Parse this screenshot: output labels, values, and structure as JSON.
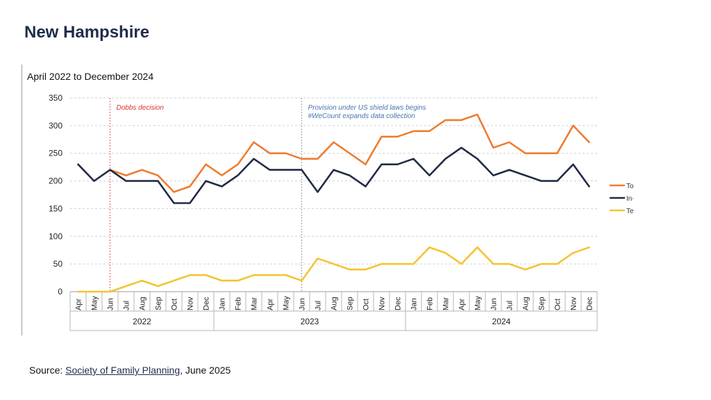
{
  "page": {
    "title": "New Hampshire",
    "source_prefix": "Source: ",
    "source_link": "Society of Family Planning",
    "source_suffix": ", June 2025"
  },
  "chart_data": {
    "type": "line",
    "title": "April 2022 to December 2024",
    "xlabel": "",
    "ylabel": "",
    "ylim": [
      0,
      350
    ],
    "yticks": [
      0,
      50,
      100,
      150,
      200,
      250,
      300,
      350
    ],
    "grid": true,
    "legend_position": "right",
    "categories": [
      "Apr",
      "May",
      "Jun",
      "Jul",
      "Aug",
      "Sep",
      "Oct",
      "Nov",
      "Dec",
      "Jan",
      "Feb",
      "Mar",
      "Apr",
      "May",
      "Jun",
      "Jul",
      "Aug",
      "Sep",
      "Oct",
      "Nov",
      "Dec",
      "Jan",
      "Feb",
      "Mar",
      "Apr",
      "May",
      "Jun",
      "Jul",
      "Aug",
      "Sep",
      "Oct",
      "Nov",
      "Dec"
    ],
    "year_groups": [
      {
        "label": "2022",
        "start": 0,
        "end": 8
      },
      {
        "label": "2023",
        "start": 9,
        "end": 20
      },
      {
        "label": "2024",
        "start": 21,
        "end": 32
      }
    ],
    "series": [
      {
        "name": "Total",
        "color": "#ed7d31",
        "values": [
          null,
          null,
          220,
          210,
          220,
          210,
          180,
          190,
          230,
          210,
          230,
          270,
          250,
          250,
          240,
          240,
          270,
          250,
          230,
          280,
          280,
          290,
          290,
          310,
          310,
          320,
          260,
          270,
          250,
          250,
          250,
          300,
          270
        ]
      },
      {
        "name": "In-person",
        "color": "#222b45",
        "values": [
          230,
          200,
          220,
          200,
          200,
          200,
          160,
          160,
          200,
          190,
          210,
          240,
          220,
          220,
          220,
          180,
          220,
          210,
          190,
          230,
          230,
          240,
          210,
          240,
          260,
          240,
          210,
          220,
          210,
          200,
          200,
          230,
          190
        ]
      },
      {
        "name": "Telehealth",
        "color": "#f4c430",
        "values": [
          0,
          0,
          0,
          10,
          20,
          10,
          20,
          30,
          30,
          20,
          20,
          30,
          30,
          30,
          20,
          60,
          50,
          40,
          40,
          50,
          50,
          50,
          80,
          70,
          50,
          80,
          50,
          50,
          40,
          50,
          50,
          70,
          80
        ]
      }
    ],
    "annotations": [
      {
        "index": 2,
        "lines": [
          "Dobbs decision"
        ],
        "color": "#d9302c"
      },
      {
        "index": 14,
        "lines": [
          "Provision under US shield laws begins",
          "#WeCount expands data collection"
        ],
        "color": "#4a72b0"
      }
    ]
  }
}
